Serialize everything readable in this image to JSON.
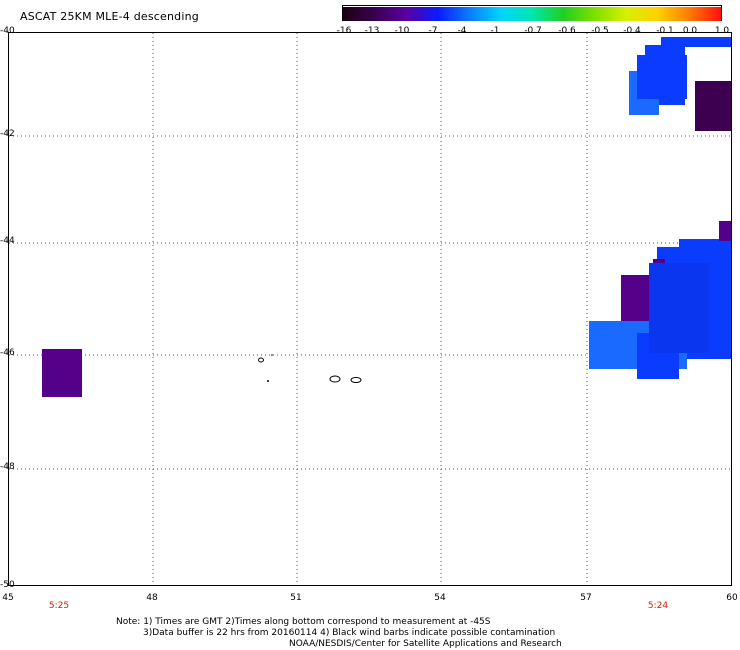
{
  "title": "ASCAT 25KM MLE-4 descending",
  "colorbar": {
    "labels": [
      "-16",
      "-13",
      "-10",
      "-7",
      "-4",
      "-1",
      "-0.7",
      "-0.6",
      "-0.5",
      "-0.4",
      "-0.1",
      "0.0",
      "1.0"
    ],
    "colors": [
      "#1a0010",
      "#3a0050",
      "#5a00a0",
      "#0a1aff",
      "#0a7aff",
      "#00d4ff",
      "#00e6b0",
      "#20d020",
      "#80e000",
      "#d8f000",
      "#ffd000",
      "#ff7a00",
      "#ff1010"
    ]
  },
  "map": {
    "lat_labels": [
      "-40",
      "-42",
      "-44",
      "-46",
      "-48",
      "-50"
    ],
    "lon_labels": [
      "45",
      "48",
      "51",
      "54",
      "57",
      "60"
    ],
    "times": [
      {
        "label": "5:25"
      },
      {
        "label": "5:24"
      }
    ],
    "colors": {
      "blue": "#0a3cff",
      "blue_light": "#1a6aff",
      "purple": "#55008a",
      "dark_purple": "#3d0050"
    }
  },
  "notes": {
    "line1": "Note: 1) Times are GMT 2)Times along bottom correspond to measurement at -45S",
    "line2": "3)Data buffer is 22 hrs from 20160114 4) Black wind barbs indicate possible contamination",
    "line3": "NOAA/NESDIS/Center for Satellite Applications and Research"
  }
}
